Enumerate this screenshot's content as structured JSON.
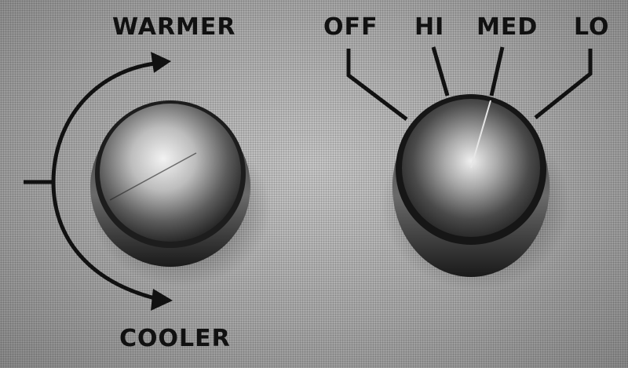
{
  "temperature_control": {
    "warmer_label": "WARMER",
    "cooler_label": "COOLER"
  },
  "fan_control": {
    "settings": [
      "OFF",
      "HI",
      "MED",
      "LO"
    ]
  }
}
